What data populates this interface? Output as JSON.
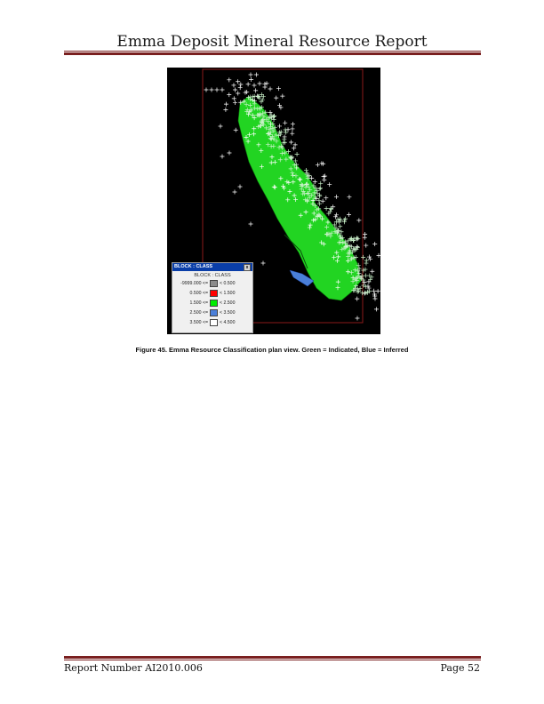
{
  "header": {
    "title": "Emma Deposit Mineral Resource Report"
  },
  "figure": {
    "legend": {
      "window_title": "BLOCK : CLASS",
      "subtitle": "BLOCK : CLASS",
      "close_glyph": "x",
      "rows": [
        {
          "low": "-9999.000 <=",
          "high": "< 0.500",
          "color": "#8c8c8c"
        },
        {
          "low": "0.500 <=",
          "high": "< 1.500",
          "color": "#ff0000"
        },
        {
          "low": "1.500 <=",
          "high": "< 2.500",
          "color": "#00ee00"
        },
        {
          "low": "2.500 <=",
          "high": "< 3.500",
          "color": "#4a7fd9"
        },
        {
          "low": "3.500 <=",
          "high": "< 4.500",
          "color": "#ffffff"
        }
      ]
    },
    "colors": {
      "indicated": "#22d422",
      "inferred": "#4a7fd9",
      "boundary": "#8b1a1a",
      "drillhole": "#ffffff"
    }
  },
  "caption": "Figure 45. Emma Resource Classification plan view.  Green = Indicated, Blue = Inferred",
  "footer": {
    "report_number": "Report Number AI2010.006",
    "page": "Page 52"
  }
}
